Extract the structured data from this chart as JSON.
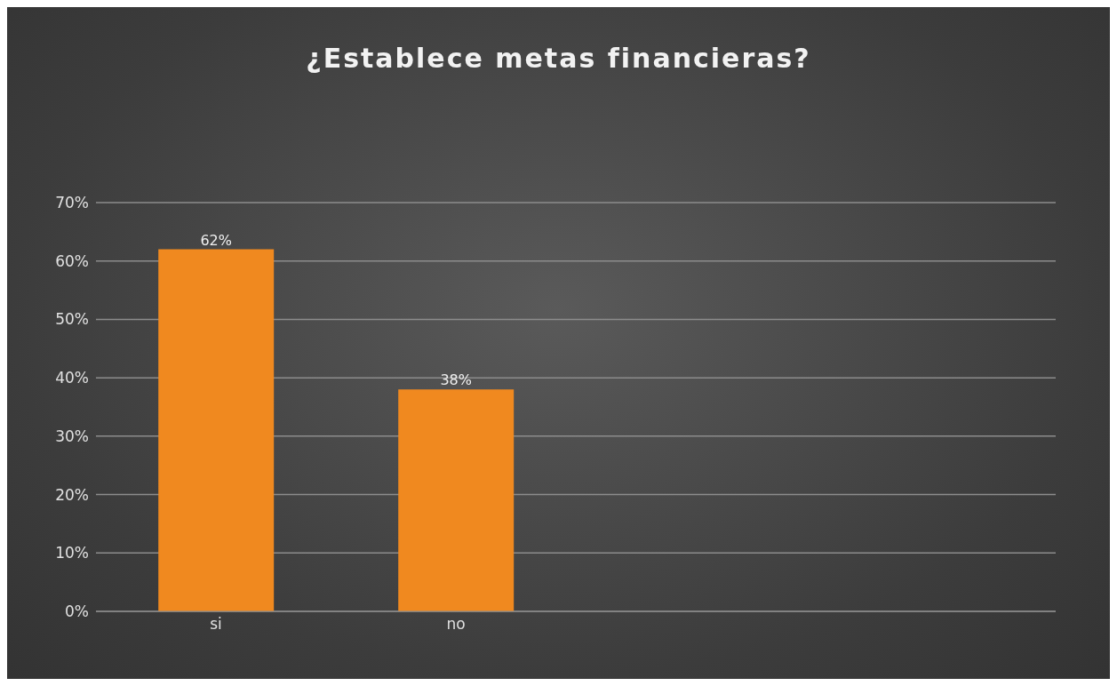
{
  "chart_data": {
    "type": "bar",
    "title": "¿Establece metas financieras?",
    "categories": [
      "si",
      "no",
      null,
      null
    ],
    "values": [
      62,
      38,
      null,
      null
    ],
    "value_labels": [
      "62%",
      "38%",
      null,
      null
    ],
    "color": "#f0891f",
    "ylim": [
      0,
      70
    ],
    "yticks": [
      {
        "value": 0,
        "label": "0%"
      },
      {
        "value": 10,
        "label": "10%"
      },
      {
        "value": 20,
        "label": "20%"
      },
      {
        "value": 30,
        "label": "30%"
      },
      {
        "value": 40,
        "label": "40%"
      },
      {
        "value": 50,
        "label": "50%"
      },
      {
        "value": 60,
        "label": "60%"
      },
      {
        "value": 70,
        "label": "70%"
      }
    ],
    "grid": "y"
  }
}
